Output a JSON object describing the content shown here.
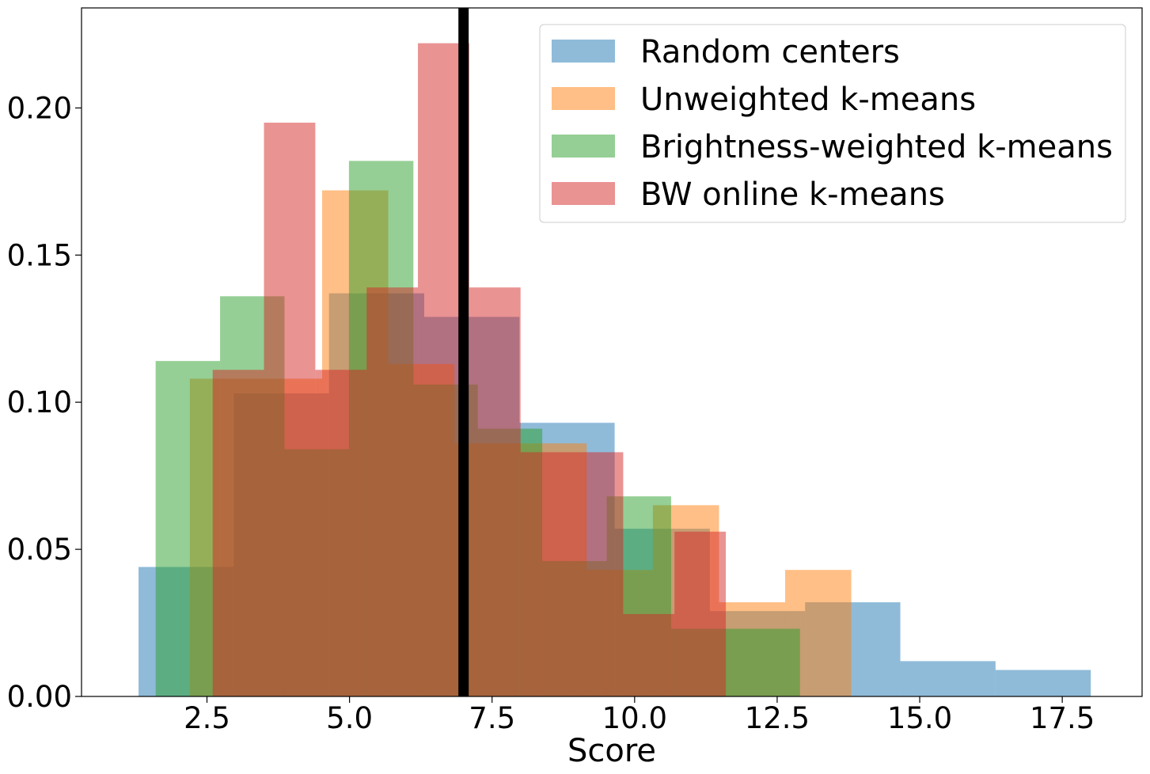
{
  "chart_data": {
    "type": "bar",
    "xlabel": "Score",
    "ylabel": "",
    "xlim": [
      0.3,
      18.9
    ],
    "ylim": [
      0,
      0.234
    ],
    "xticks": [
      2.5,
      5.0,
      7.5,
      10.0,
      12.5,
      15.0,
      17.5
    ],
    "xtick_labels": [
      "2.5",
      "5.0",
      "7.5",
      "10.0",
      "12.5",
      "15.0",
      "17.5"
    ],
    "yticks": [
      0.0,
      0.05,
      0.1,
      0.15,
      0.2
    ],
    "ytick_labels": [
      "0.00",
      "0.05",
      "0.10",
      "0.15",
      "0.20"
    ],
    "grid": false,
    "legend_position": "top-right",
    "vline": {
      "x": 7.0,
      "color": "#000000"
    },
    "series": [
      {
        "name": "Random centers",
        "color": "#1f77b4",
        "edges": [
          1.3,
          2.97,
          4.64,
          6.31,
          7.98,
          9.65,
          11.32,
          12.99,
          14.66,
          16.33,
          18.0
        ],
        "values": [
          0.044,
          0.103,
          0.137,
          0.129,
          0.093,
          0.057,
          0.029,
          0.032,
          0.012,
          0.009,
          0.005
        ]
      },
      {
        "name": "Unweighted k-means",
        "color": "#ff7f0e",
        "edges": [
          2.2,
          3.36,
          4.52,
          5.68,
          6.84,
          8.0,
          9.16,
          10.32,
          11.48,
          12.64,
          13.8
        ],
        "values": [
          0.108,
          0.108,
          0.172,
          0.113,
          0.086,
          0.086,
          0.043,
          0.065,
          0.032,
          0.043,
          0.022
        ]
      },
      {
        "name": "Brightness-weighted k-means",
        "color": "#2ca02c",
        "edges": [
          1.6,
          2.73,
          3.86,
          4.99,
          6.12,
          7.25,
          8.38,
          9.51,
          10.64,
          11.77,
          12.9
        ],
        "values": [
          0.114,
          0.136,
          0.084,
          0.182,
          0.106,
          0.091,
          0.046,
          0.068,
          0.023,
          0.023,
          0.001
        ]
      },
      {
        "name": "BW online k-means",
        "color": "#d62728",
        "edges": [
          2.6,
          3.5,
          4.4,
          5.3,
          6.2,
          7.1,
          8.0,
          8.9,
          9.8,
          10.7,
          11.6
        ],
        "values": [
          0.111,
          0.195,
          0.111,
          0.139,
          0.222,
          0.139,
          0.083,
          0.083,
          0.028,
          0.056,
          0.0
        ]
      }
    ]
  }
}
